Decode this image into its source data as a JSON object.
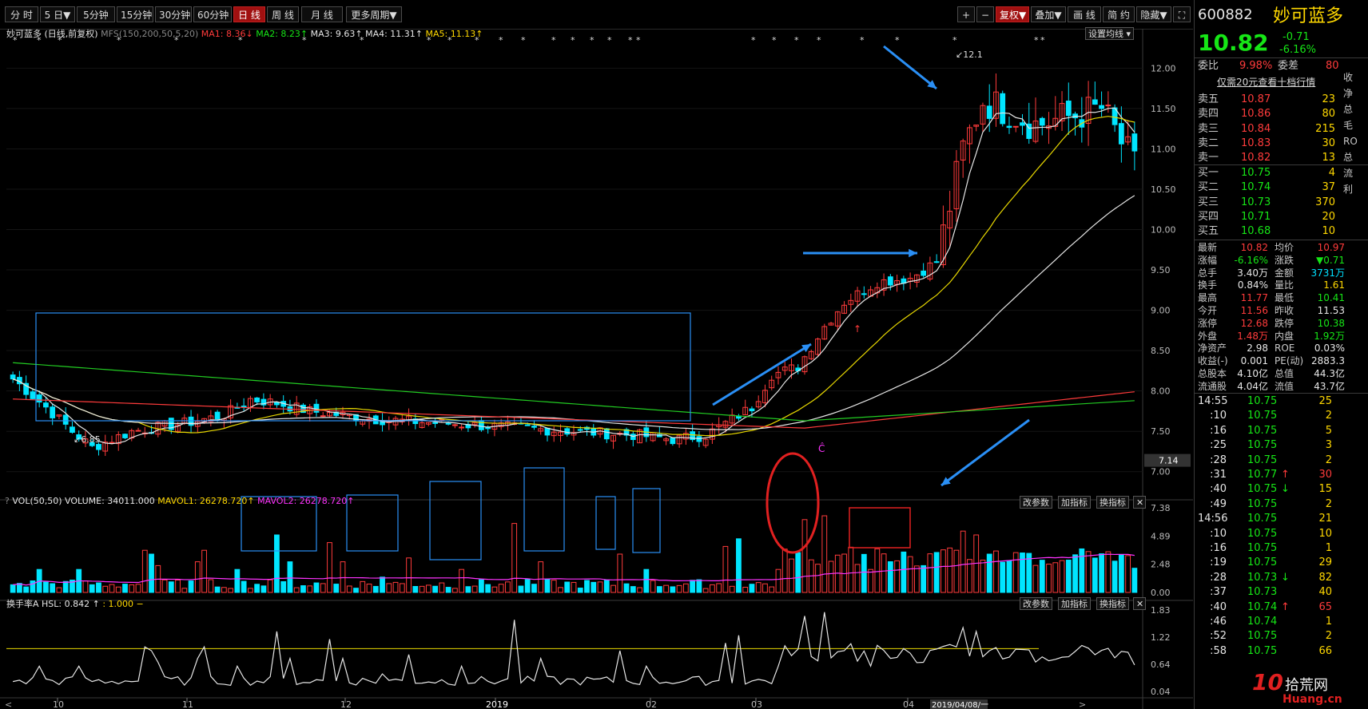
{
  "toolbar": {
    "buttons": [
      "分 时",
      "5 日",
      "5分钟",
      "15分钟",
      "30分钟",
      "60分钟",
      "日 线",
      "周 线",
      "月 线",
      "更多周期"
    ],
    "right_buttons": [
      "+",
      "−",
      "复权",
      "叠加",
      "画 线",
      "简 约",
      "隐藏"
    ],
    "five_day_arrow": "▼",
    "more_arrow": "▼",
    "fq_arrow": "▼",
    "overlay_arrow": "▼",
    "hide_arrow": "▼",
    "fullscreen_icon": "⛶"
  },
  "main_legend": {
    "name": "妙可蓝多",
    "period": "(日线,前复权)",
    "mfs": "MFS(150,200,50,5,20)",
    "ma1": "MA1: 8.36",
    "ma2": "MA2: 8.23",
    "ma3": "MA3: 9.63",
    "ma4": "MA4: 11.31",
    "ma5": "MA5: 11.13",
    "ma_setting": "设置均线",
    "setting_arrow": "▾",
    "arrow_down": "↓",
    "arrow_up": "↑",
    "high_mark": "12.1",
    "low_mark": "6.85",
    "last_price_tag": "7.14"
  },
  "price_axis": [
    "12.00",
    "11.50",
    "11.00",
    "10.50",
    "10.00",
    "9.50",
    "9.00",
    "8.50",
    "8.00",
    "7.50",
    "7.00"
  ],
  "vol_legend": {
    "question": "?",
    "name": "VOL(50,50)",
    "volume": "VOLUME: 34011.000",
    "mavol1": "MAVOL1: 26278.720",
    "mavol2": "MAVOL2: 26278.720",
    "arrow": "↑"
  },
  "vol_axis": [
    "7.38",
    "4.89",
    "2.48",
    "0.00"
  ],
  "hsl_legend": {
    "name": "换手率A",
    "hsl": "HSL: 0.842",
    "ref": ": 1.000",
    "arrow": "↑",
    "dash": "−"
  },
  "hsl_axis": [
    "1.83",
    "1.22",
    "0.64",
    "0.04"
  ],
  "pane_buttons": [
    "改参数",
    "加指标",
    "换指标"
  ],
  "close_icon": "✕",
  "x_axis": [
    "10",
    "11",
    "12",
    "2019",
    "02",
    "03",
    "04"
  ],
  "x_axis_date_tag": "2019/04/08/一",
  "scroll_left": "<",
  "scroll_right": ">",
  "red_marker": "Ĉ",
  "quote": {
    "code": "600882",
    "name": "妙可蓝多",
    "price": "10.82",
    "change": "-0.71",
    "change_pct": "-6.16%",
    "wb_label": "委比",
    "wb_value": "9.98%",
    "wc_label": "委差",
    "wc_value": "80",
    "promo": "仅需20元查看十档行情",
    "asks": [
      {
        "label": "卖五",
        "price": "10.87",
        "vol": "23"
      },
      {
        "label": "卖四",
        "price": "10.86",
        "vol": "80"
      },
      {
        "label": "卖三",
        "price": "10.84",
        "vol": "215"
      },
      {
        "label": "卖二",
        "price": "10.83",
        "vol": "30"
      },
      {
        "label": "卖一",
        "price": "10.82",
        "vol": "13"
      }
    ],
    "bids": [
      {
        "label": "买一",
        "price": "10.75",
        "vol": "4"
      },
      {
        "label": "买二",
        "price": "10.74",
        "vol": "37"
      },
      {
        "label": "买三",
        "price": "10.73",
        "vol": "370"
      },
      {
        "label": "买四",
        "price": "10.71",
        "vol": "20"
      },
      {
        "label": "买五",
        "price": "10.68",
        "vol": "10"
      }
    ],
    "stats": [
      {
        "l1": "最新",
        "v1": "10.82",
        "c1": "red",
        "l2": "均价",
        "v2": "10.97",
        "c2": "red"
      },
      {
        "l1": "涨幅",
        "v1": "-6.16%",
        "c1": "green",
        "l2": "涨跌",
        "v2": "▼0.71",
        "c2": "green"
      },
      {
        "l1": "总手",
        "v1": "3.40万",
        "c1": "white",
        "l2": "金额",
        "v2": "3731万",
        "c2": "cyan"
      },
      {
        "l1": "换手",
        "v1": "0.84%",
        "c1": "white",
        "l2": "量比",
        "v2": "1.61",
        "c2": "yellow"
      },
      {
        "l1": "最高",
        "v1": "11.77",
        "c1": "red",
        "l2": "最低",
        "v2": "10.41",
        "c2": "green"
      },
      {
        "l1": "今开",
        "v1": "11.56",
        "c1": "red",
        "l2": "昨收",
        "v2": "11.53",
        "c2": "white"
      },
      {
        "l1": "涨停",
        "v1": "12.68",
        "c1": "red",
        "l2": "跌停",
        "v2": "10.38",
        "c2": "green"
      },
      {
        "l1": "外盘",
        "v1": "1.48万",
        "c1": "red",
        "l2": "内盘",
        "v2": "1.92万",
        "c2": "green"
      },
      {
        "l1": "净资产",
        "v1": "2.98",
        "c1": "white",
        "l2": "ROE",
        "v2": "0.03%",
        "c2": "white"
      },
      {
        "l1": "收益(-)",
        "v1": "0.001",
        "c1": "white",
        "l2": "PE(动)",
        "v2": "2883.3",
        "c2": "white"
      },
      {
        "l1": "总股本",
        "v1": "4.10亿",
        "c1": "white",
        "l2": "总值",
        "v2": "44.3亿",
        "c2": "white"
      },
      {
        "l1": "流通股",
        "v1": "4.04亿",
        "c1": "white",
        "l2": "流值",
        "v2": "43.7亿",
        "c2": "white"
      }
    ],
    "ticks": [
      {
        "time": "14:55",
        "price": "10.75",
        "arrow": "",
        "vol": "25"
      },
      {
        "time": ":10",
        "price": "10.75",
        "arrow": "",
        "vol": "2"
      },
      {
        "time": ":16",
        "price": "10.75",
        "arrow": "",
        "vol": "5"
      },
      {
        "time": ":25",
        "price": "10.75",
        "arrow": "",
        "vol": "3"
      },
      {
        "time": ":28",
        "price": "10.75",
        "arrow": "",
        "vol": "2"
      },
      {
        "time": ":31",
        "price": "10.77",
        "arrow": "↑",
        "vol": "30"
      },
      {
        "time": ":40",
        "price": "10.75",
        "arrow": "↓",
        "vol": "15"
      },
      {
        "time": ":49",
        "price": "10.75",
        "arrow": "",
        "vol": "2"
      },
      {
        "time": "14:56",
        "price": "10.75",
        "arrow": "",
        "vol": "21"
      },
      {
        "time": ":10",
        "price": "10.75",
        "arrow": "",
        "vol": "10"
      },
      {
        "time": ":16",
        "price": "10.75",
        "arrow": "",
        "vol": "1"
      },
      {
        "time": ":19",
        "price": "10.75",
        "arrow": "",
        "vol": "29"
      },
      {
        "time": ":28",
        "price": "10.73",
        "arrow": "↓",
        "vol": "82"
      },
      {
        "time": ":37",
        "price": "10.73",
        "arrow": "",
        "vol": "40"
      },
      {
        "time": ":40",
        "price": "10.74",
        "arrow": "↑",
        "vol": "65"
      },
      {
        "time": ":46",
        "price": "10.74",
        "arrow": "",
        "vol": "1"
      },
      {
        "time": ":52",
        "price": "10.75",
        "arrow": "",
        "vol": "2"
      },
      {
        "time": ":58",
        "price": "10.75",
        "arrow": "",
        "vol": "66"
      }
    ],
    "side_chars": [
      "收",
      "净",
      "总",
      "毛",
      "RO",
      "总",
      "流",
      "利"
    ],
    "watermark_num": "10",
    "watermark_text": "拾荒网",
    "watermark_site": "Huang.cn"
  },
  "colors": {
    "up": "#ff3b3b",
    "down": "#00e5ff",
    "ma_white": "#e6e6e6",
    "ma_yellow": "#e8d800",
    "ma_red": "#ff3b3b",
    "ma_green": "#22cc22",
    "annot_blue": "#2a8ff5"
  }
}
